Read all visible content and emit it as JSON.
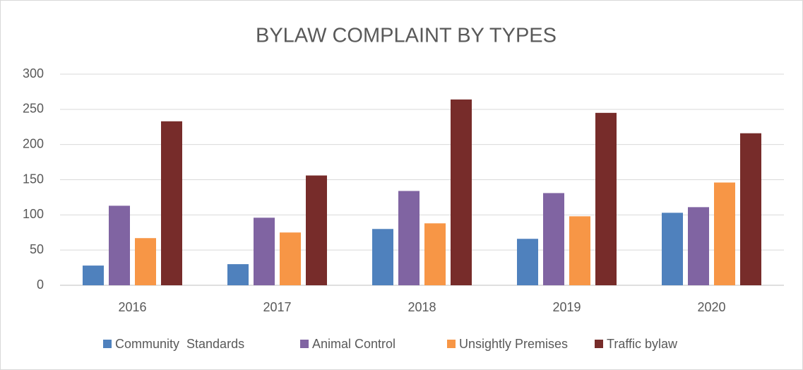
{
  "chart_data": {
    "type": "bar",
    "title": "BYLAW COMPLAINT BY TYPES",
    "categories": [
      "2016",
      "2017",
      "2018",
      "2019",
      "2020"
    ],
    "series": [
      {
        "name": "Community  Standards",
        "color": "#4f81bd",
        "values": [
          28,
          30,
          80,
          66,
          103
        ]
      },
      {
        "name": "Animal Control",
        "color": "#8064a2",
        "values": [
          113,
          96,
          134,
          131,
          111
        ]
      },
      {
        "name": "Unsightly Premises",
        "color": "#f79646",
        "values": [
          67,
          75,
          88,
          98,
          146
        ]
      },
      {
        "name": "Traffic bylaw",
        "color": "#772c2a",
        "values": [
          233,
          156,
          264,
          245,
          216
        ]
      }
    ],
    "ylim": [
      0,
      300
    ],
    "yticks": [
      0,
      50,
      100,
      150,
      200,
      250,
      300
    ],
    "grid": true,
    "legend": "bottom"
  }
}
